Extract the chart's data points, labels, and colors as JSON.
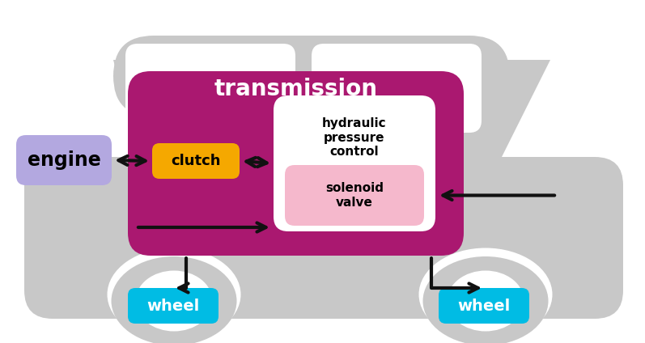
{
  "bg_color": "#ffffff",
  "car_color": "#c8c8c8",
  "transmission_color": "#aa1870",
  "engine_color": "#b3a8e0",
  "clutch_color": "#f5a800",
  "hpc_color": "#ffffff",
  "solenoid_color": "#f5b8cc",
  "wheel_color": "#00bce4",
  "arrow_color": "#111111",
  "title": "transmission",
  "engine_label": "engine",
  "clutch_label": "clutch",
  "hpc_label": "hydraulic\npressure\ncontrol",
  "solenoid_label": "solenoid\nvalve",
  "wheel_label": "wheel",
  "fig_width": 7.97,
  "fig_height": 4.24,
  "dpi": 100
}
